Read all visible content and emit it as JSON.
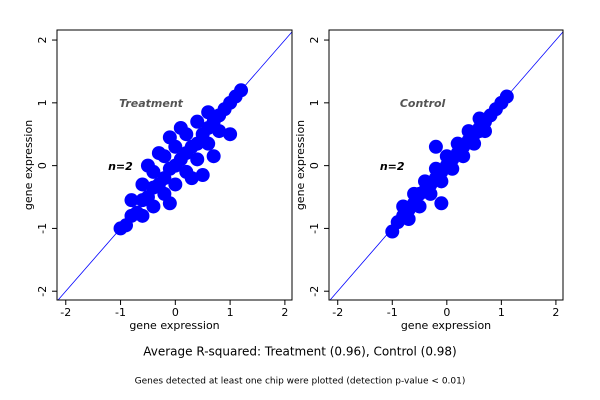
{
  "chart_data": [
    {
      "type": "scatter",
      "annotation": "Treatment",
      "sample_label": "n=2",
      "xlabel": "gene expression",
      "ylabel": "gene expression",
      "color": "#0000ff",
      "xlim": [
        -2.16,
        2.13
      ],
      "ylim": [
        -2.14,
        2.16
      ],
      "xticks": [
        -2,
        -1,
        0,
        1,
        2
      ],
      "yticks": [
        -2,
        -1,
        0,
        1,
        2
      ],
      "x": [
        -1.0,
        -0.9,
        -0.8,
        -0.7,
        -0.6,
        -0.5,
        -0.4,
        -0.3,
        -0.2,
        -0.1,
        0,
        0.1,
        0.2,
        0.3,
        0.4,
        0.5,
        0.6,
        0.7,
        0.8,
        0.9,
        1.0,
        1.1,
        1.2,
        -0.8,
        -0.6,
        -0.4,
        -0.2,
        0,
        0.2,
        0.4,
        0.6,
        -0.5,
        -0.3,
        -0.1,
        0.1,
        -0.6,
        -0.4,
        -0.2,
        0,
        0.2,
        0.4,
        0.6,
        0.8,
        -0.1,
        0.3,
        0.5,
        0.7,
        1.0
      ],
      "y": [
        -1.0,
        -0.95,
        -0.8,
        -0.75,
        -0.55,
        -0.5,
        -0.35,
        -0.3,
        -0.2,
        -0.05,
        0,
        0.1,
        0.2,
        0.3,
        0.35,
        0.5,
        0.6,
        0.7,
        0.8,
        0.9,
        1.0,
        1.1,
        1.2,
        -0.55,
        -0.3,
        -0.1,
        0.15,
        0.3,
        0.5,
        0.7,
        0.85,
        0.0,
        0.2,
        0.45,
        0.6,
        -0.8,
        -0.65,
        -0.45,
        -0.3,
        -0.1,
        0.1,
        0.35,
        0.55,
        -0.6,
        -0.2,
        -0.15,
        0.15,
        0.5
      ]
    },
    {
      "type": "scatter",
      "annotation": "Control",
      "sample_label": "n=2",
      "xlabel": "gene expression",
      "ylabel": "gene expression",
      "color": "#0000ff",
      "xlim": [
        -2.16,
        2.13
      ],
      "ylim": [
        -2.14,
        2.16
      ],
      "xticks": [
        -2,
        -1,
        0,
        1,
        2
      ],
      "yticks": [
        -2,
        -1,
        0,
        1,
        2
      ],
      "x": [
        -1.0,
        -0.9,
        -0.8,
        -0.7,
        -0.6,
        -0.5,
        -0.4,
        -0.3,
        -0.2,
        -0.1,
        0,
        0.1,
        0.2,
        0.3,
        0.4,
        0.5,
        0.6,
        0.7,
        0.8,
        0.9,
        1.0,
        1.1,
        -0.8,
        -0.6,
        -0.4,
        -0.2,
        0,
        0.2,
        0.4,
        0.6,
        -0.7,
        -0.5,
        -0.3,
        -0.1,
        0.1,
        0.3,
        0.5,
        0.7,
        -0.2,
        0.6,
        -0.1
      ],
      "y": [
        -1.05,
        -0.9,
        -0.8,
        -0.7,
        -0.6,
        -0.45,
        -0.4,
        -0.3,
        -0.2,
        -0.1,
        0,
        0.1,
        0.2,
        0.3,
        0.4,
        0.5,
        0.6,
        0.7,
        0.8,
        0.9,
        1.0,
        1.1,
        -0.65,
        -0.45,
        -0.25,
        -0.05,
        0.15,
        0.35,
        0.55,
        0.75,
        -0.85,
        -0.65,
        -0.45,
        -0.25,
        -0.05,
        0.15,
        0.35,
        0.55,
        0.3,
        0.55,
        -0.6
      ]
    }
  ],
  "caption": "Average R-squared: Treatment (0.96), Control (0.98)",
  "footnote": "Genes detected at least one chip were plotted (detection p-value < 0.01)"
}
